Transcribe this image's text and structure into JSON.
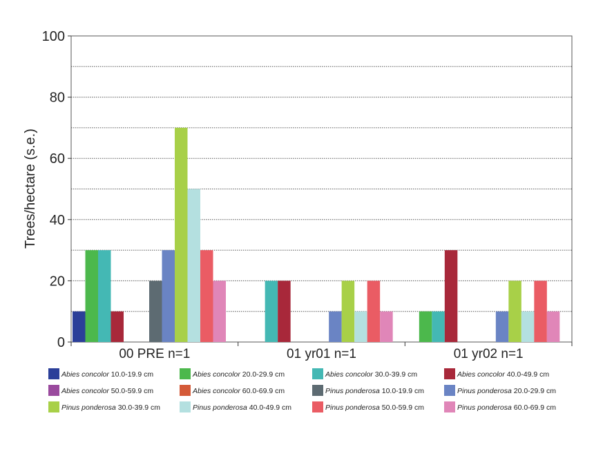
{
  "chart_data": {
    "type": "bar",
    "title": "",
    "xlabel": "",
    "ylabel": "Trees/hectare (s.e.)",
    "ylim": [
      0,
      100
    ],
    "yticks": [
      0,
      20,
      40,
      60,
      80,
      100
    ],
    "grid": "horizontal dotted every 10",
    "categories": [
      "00 PRE n=1",
      "01 yr01 n=1",
      "01 yr02 n=1"
    ],
    "legend_position": "bottom",
    "series": [
      {
        "name": "Abies concolor 10.0-19.9 cm",
        "species": "Abies concolor",
        "size": "10.0-19.9 cm",
        "color": "#2b3f99",
        "values": [
          10,
          0,
          0
        ]
      },
      {
        "name": "Abies concolor 20.0-29.9 cm",
        "species": "Abies concolor",
        "size": "20.0-29.9 cm",
        "color": "#4cb84c",
        "values": [
          30,
          0,
          10
        ]
      },
      {
        "name": "Abies concolor 30.0-39.9 cm",
        "species": "Abies concolor",
        "size": "30.0-39.9 cm",
        "color": "#44b8b4",
        "values": [
          30,
          20,
          10
        ]
      },
      {
        "name": "Abies concolor 40.0-49.9 cm",
        "species": "Abies concolor",
        "size": "40.0-49.9 cm",
        "color": "#a8283a",
        "values": [
          10,
          20,
          30
        ]
      },
      {
        "name": "Abies concolor 50.0-59.9 cm",
        "species": "Abies concolor",
        "size": "50.0-59.9 cm",
        "color": "#9a4a9e",
        "values": [
          0,
          0,
          0
        ]
      },
      {
        "name": "Abies concolor 60.0-69.9 cm",
        "species": "Abies concolor",
        "size": "60.0-69.9 cm",
        "color": "#d45a38",
        "values": [
          0,
          0,
          0
        ]
      },
      {
        "name": "Pinus ponderosa 10.0-19.9 cm",
        "species": "Pinus ponderosa",
        "size": "10.0-19.9 cm",
        "color": "#5d6b72",
        "values": [
          20,
          0,
          0
        ]
      },
      {
        "name": "Pinus ponderosa 20.0-29.9 cm",
        "species": "Pinus ponderosa",
        "size": "20.0-29.9 cm",
        "color": "#6a84c4",
        "values": [
          30,
          10,
          10
        ]
      },
      {
        "name": "Pinus ponderosa 30.0-39.9 cm",
        "species": "Pinus ponderosa",
        "size": "30.0-39.9 cm",
        "color": "#a8d048",
        "values": [
          70,
          20,
          20
        ]
      },
      {
        "name": "Pinus ponderosa 40.0-49.9 cm",
        "species": "Pinus ponderosa",
        "size": "40.0-49.9 cm",
        "color": "#b4e0e0",
        "values": [
          50,
          10,
          10
        ]
      },
      {
        "name": "Pinus ponderosa 50.0-59.9 cm",
        "species": "Pinus ponderosa",
        "size": "50.0-59.9 cm",
        "color": "#ea5c64",
        "values": [
          30,
          20,
          20
        ]
      },
      {
        "name": "Pinus ponderosa 60.0-69.9 cm",
        "species": "Pinus ponderosa",
        "size": "60.0-69.9 cm",
        "color": "#e086b8",
        "values": [
          20,
          10,
          10
        ]
      }
    ]
  }
}
